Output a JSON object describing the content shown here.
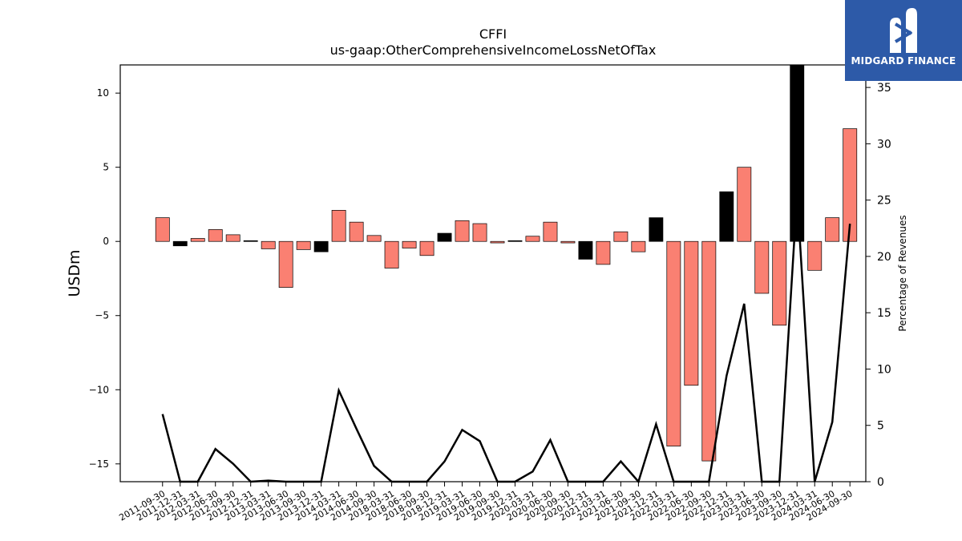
{
  "chart_data": {
    "type": "bar",
    "title": "CFFI",
    "subtitle": "us-gaap:OtherComprehensiveIncomeLossNetOfTax",
    "ylabel": "USDm",
    "y2label": "Percentage of Revenues",
    "ylim": [
      -16.2,
      11.9
    ],
    "y2lim": [
      0,
      37
    ],
    "yticks": [
      10,
      5,
      0,
      -5,
      -10,
      -15
    ],
    "y2ticks": [
      0,
      5,
      10,
      15,
      20,
      25,
      30,
      35
    ],
    "categories": [
      "2011-09-30",
      "2011-12-31",
      "2012-03-31",
      "2012-06-30",
      "2012-09-30",
      "2012-12-31",
      "2013-03-31",
      "2013-06-30",
      "2013-09-30",
      "2013-12-31",
      "2014-03-31",
      "2014-06-30",
      "2014-09-30",
      "2018-03-31",
      "2018-06-30",
      "2018-09-30",
      "2018-12-31",
      "2019-03-31",
      "2019-06-30",
      "2019-09-30",
      "2019-12-31",
      "2020-03-31",
      "2020-06-30",
      "2020-09-30",
      "2020-12-31",
      "2021-03-31",
      "2021-06-30",
      "2021-09-30",
      "2021-12-31",
      "2022-03-31",
      "2022-06-30",
      "2022-09-30",
      "2022-12-31",
      "2023-03-31",
      "2023-06-30",
      "2023-09-30",
      "2023-12-31",
      "2024-03-31",
      "2024-06-30",
      "2024-09-30"
    ],
    "series": [
      {
        "type": "bar",
        "values": [
          1.6,
          -0.3,
          0.2,
          0.8,
          0.45,
          0.05,
          -0.5,
          -3.1,
          -0.55,
          -0.7,
          2.1,
          1.3,
          0.4,
          -1.8,
          -0.45,
          -0.95,
          0.55,
          1.4,
          1.2,
          -0.1,
          0.05,
          0.35,
          1.3,
          -0.1,
          -1.2,
          -1.55,
          0.65,
          -0.7,
          1.6,
          -13.8,
          -9.7,
          -14.8,
          3.35,
          5.0,
          -3.5,
          -5.65,
          11.9,
          -1.95,
          1.6,
          7.6
        ],
        "colors": [
          "salmon",
          "black",
          "salmon",
          "salmon",
          "salmon",
          "black",
          "salmon",
          "salmon",
          "salmon",
          "black",
          "salmon",
          "salmon",
          "salmon",
          "salmon",
          "salmon",
          "salmon",
          "black",
          "salmon",
          "salmon",
          "salmon",
          "black",
          "salmon",
          "salmon",
          "salmon",
          "black",
          "salmon",
          "salmon",
          "salmon",
          "black",
          "salmon",
          "salmon",
          "salmon",
          "black",
          "salmon",
          "salmon",
          "salmon",
          "black",
          "salmon",
          "salmon",
          "salmon"
        ]
      },
      {
        "type": "line",
        "axis": "right",
        "values": [
          6.0,
          0,
          0,
          2.9,
          1.6,
          0,
          0.1,
          0,
          0,
          0,
          8.1,
          4.7,
          1.4,
          0,
          0,
          0,
          1.8,
          4.6,
          3.6,
          0,
          0,
          0.9,
          3.7,
          0,
          0,
          0,
          1.8,
          0,
          5.1,
          0,
          0,
          0,
          9.4,
          15.8,
          0,
          0,
          25.5,
          0,
          5.3,
          22.9
        ]
      }
    ],
    "legend": "none",
    "grid": false
  },
  "colors": {
    "bar_positive": "#fa8072",
    "bar_highlight": "#000000",
    "line": "#000000"
  },
  "logo": {
    "text": "MIDGARD FINANCE"
  }
}
